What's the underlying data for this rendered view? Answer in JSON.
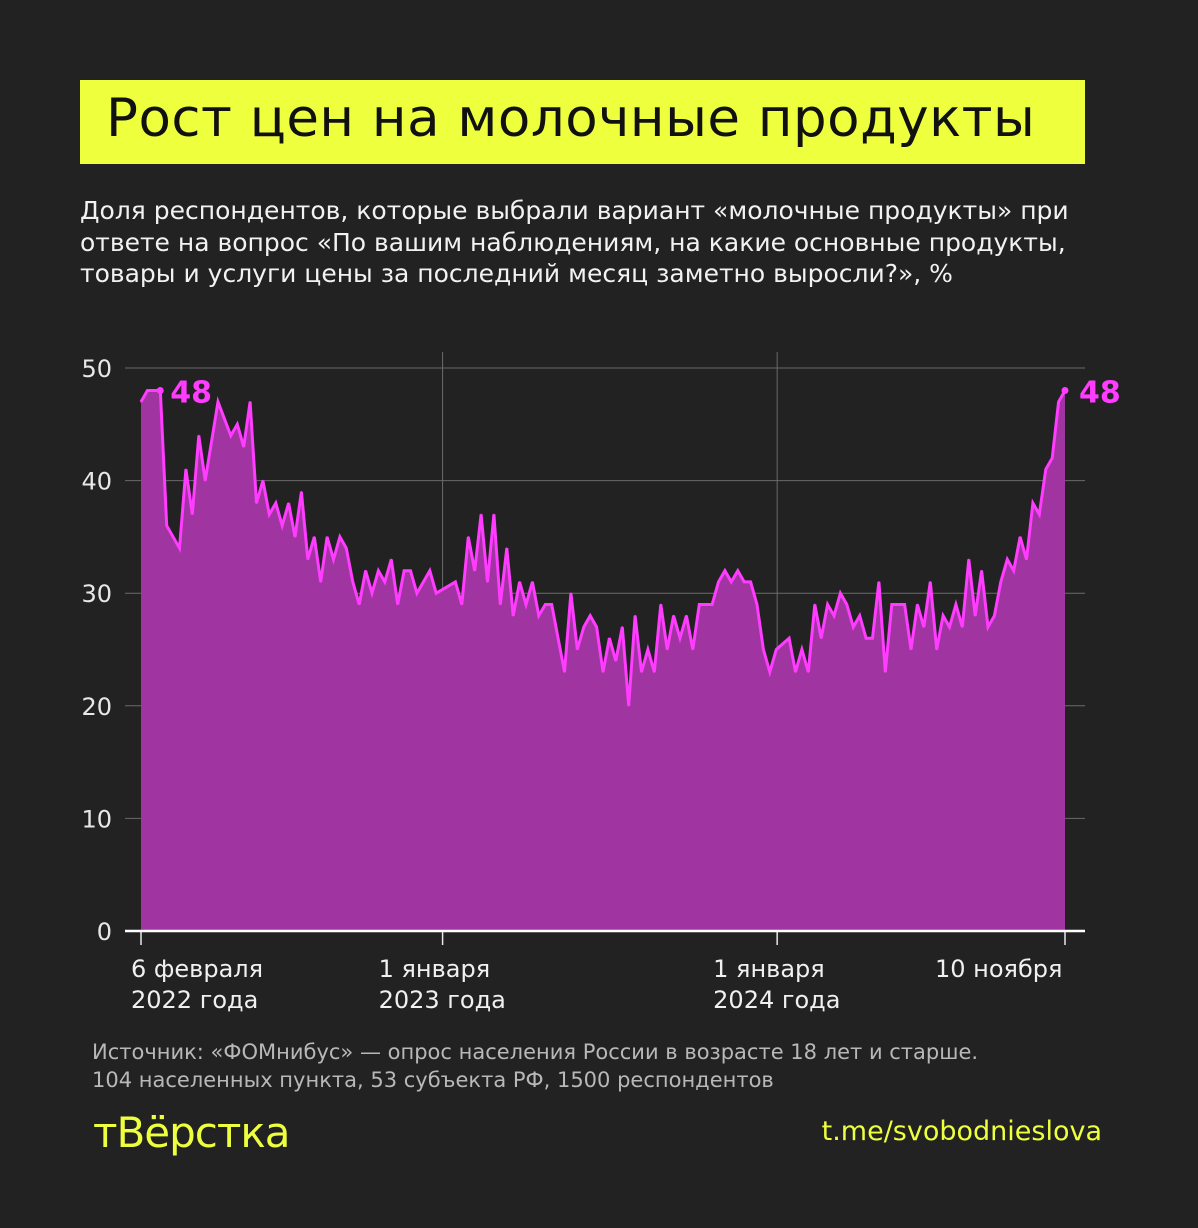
{
  "header": {
    "title": "Рост цен на молочные продукты",
    "subtitle": "Доля респондентов, которые выбрали вариант «молочные продукты» при ответе на вопрос «По вашим наблюдениям, на какие основные продукты, товары и услуги цены за последний месяц заметно выросли?», %"
  },
  "footer": {
    "source": "Источник: «ФОМнибус» — опрос населения России в возрасте 18 лет и старше.",
    "source_detail": "104 населенных пункта, 53 субъекта РФ, 1500 респондентов",
    "logo": "тВёрстка",
    "link": "t.me/svobodnieslova"
  },
  "colors": {
    "background": "#222222",
    "accent": "#eeff3e",
    "line": "#ff3cff",
    "fill": "#a034a0"
  },
  "chart_data": {
    "type": "area",
    "title": "",
    "xlabel": "",
    "ylabel": "",
    "ylim": [
      0,
      50
    ],
    "xlim": [
      "2022-02-06",
      "2024-11-10"
    ],
    "grid": true,
    "yticks": [
      "0",
      "10",
      "20",
      "30",
      "40",
      "50"
    ],
    "xticks": [
      {
        "date": "2022-02-06",
        "line1": "6 февраля",
        "line2": "2022 года"
      },
      {
        "date": "2023-01-01",
        "line1": "1 января",
        "line2": "2023 года"
      },
      {
        "date": "2024-01-01",
        "line1": "1 января",
        "line2": "2024 года"
      },
      {
        "date": "2024-11-10",
        "line1": "10 ноября",
        "line2": ""
      }
    ],
    "annotations": [
      {
        "date": "2022-02-27",
        "value": 48,
        "label": "48"
      },
      {
        "date": "2024-11-10",
        "value": 48,
        "label": "48"
      }
    ],
    "points": [
      [
        "2022-02-06",
        47
      ],
      [
        "2022-02-13",
        48
      ],
      [
        "2022-02-20",
        48
      ],
      [
        "2022-02-27",
        48
      ],
      [
        "2022-03-06",
        36
      ],
      [
        "2022-03-20",
        34
      ],
      [
        "2022-03-27",
        41
      ],
      [
        "2022-04-03",
        37
      ],
      [
        "2022-04-10",
        44
      ],
      [
        "2022-04-17",
        40
      ],
      [
        "2022-05-01",
        47
      ],
      [
        "2022-05-15",
        44
      ],
      [
        "2022-05-22",
        45
      ],
      [
        "2022-05-29",
        43
      ],
      [
        "2022-06-05",
        47
      ],
      [
        "2022-06-12",
        38
      ],
      [
        "2022-06-19",
        40
      ],
      [
        "2022-06-26",
        37
      ],
      [
        "2022-07-03",
        38
      ],
      [
        "2022-07-10",
        36
      ],
      [
        "2022-07-17",
        38
      ],
      [
        "2022-07-24",
        35
      ],
      [
        "2022-07-31",
        39
      ],
      [
        "2022-08-07",
        33
      ],
      [
        "2022-08-14",
        35
      ],
      [
        "2022-08-21",
        31
      ],
      [
        "2022-08-28",
        35
      ],
      [
        "2022-09-04",
        33
      ],
      [
        "2022-09-11",
        35
      ],
      [
        "2022-09-18",
        34
      ],
      [
        "2022-09-25",
        31
      ],
      [
        "2022-10-02",
        29
      ],
      [
        "2022-10-09",
        32
      ],
      [
        "2022-10-16",
        30
      ],
      [
        "2022-10-23",
        32
      ],
      [
        "2022-10-30",
        31
      ],
      [
        "2022-11-06",
        33
      ],
      [
        "2022-11-13",
        29
      ],
      [
        "2022-11-20",
        32
      ],
      [
        "2022-11-27",
        32
      ],
      [
        "2022-12-04",
        30
      ],
      [
        "2022-12-18",
        32
      ],
      [
        "2022-12-25",
        30
      ],
      [
        "2023-01-15",
        31
      ],
      [
        "2023-01-22",
        29
      ],
      [
        "2023-01-29",
        35
      ],
      [
        "2023-02-05",
        32
      ],
      [
        "2023-02-12",
        37
      ],
      [
        "2023-02-19",
        31
      ],
      [
        "2023-02-26",
        37
      ],
      [
        "2023-03-05",
        29
      ],
      [
        "2023-03-12",
        34
      ],
      [
        "2023-03-19",
        28
      ],
      [
        "2023-03-26",
        31
      ],
      [
        "2023-04-02",
        29
      ],
      [
        "2023-04-09",
        31
      ],
      [
        "2023-04-16",
        28
      ],
      [
        "2023-04-23",
        29
      ],
      [
        "2023-04-30",
        29
      ],
      [
        "2023-05-14",
        23
      ],
      [
        "2023-05-21",
        30
      ],
      [
        "2023-05-28",
        25
      ],
      [
        "2023-06-04",
        27
      ],
      [
        "2023-06-11",
        28
      ],
      [
        "2023-06-18",
        27
      ],
      [
        "2023-06-25",
        23
      ],
      [
        "2023-07-02",
        26
      ],
      [
        "2023-07-09",
        24
      ],
      [
        "2023-07-16",
        27
      ],
      [
        "2023-07-23",
        20
      ],
      [
        "2023-07-30",
        28
      ],
      [
        "2023-08-06",
        23
      ],
      [
        "2023-08-13",
        25
      ],
      [
        "2023-08-20",
        23
      ],
      [
        "2023-08-27",
        29
      ],
      [
        "2023-09-03",
        25
      ],
      [
        "2023-09-10",
        28
      ],
      [
        "2023-09-17",
        26
      ],
      [
        "2023-09-24",
        28
      ],
      [
        "2023-10-01",
        25
      ],
      [
        "2023-10-08",
        29
      ],
      [
        "2023-10-22",
        29
      ],
      [
        "2023-10-29",
        31
      ],
      [
        "2023-11-05",
        32
      ],
      [
        "2023-11-12",
        31
      ],
      [
        "2023-11-19",
        32
      ],
      [
        "2023-11-26",
        31
      ],
      [
        "2023-12-03",
        31
      ],
      [
        "2023-12-10",
        29
      ],
      [
        "2023-12-17",
        25
      ],
      [
        "2023-12-24",
        23
      ],
      [
        "2023-12-31",
        25
      ],
      [
        "2024-01-14",
        26
      ],
      [
        "2024-01-21",
        23
      ],
      [
        "2024-01-28",
        25
      ],
      [
        "2024-02-04",
        23
      ],
      [
        "2024-02-11",
        29
      ],
      [
        "2024-02-18",
        26
      ],
      [
        "2024-02-25",
        29
      ],
      [
        "2024-03-03",
        28
      ],
      [
        "2024-03-10",
        30
      ],
      [
        "2024-03-17",
        29
      ],
      [
        "2024-03-24",
        27
      ],
      [
        "2024-03-31",
        28
      ],
      [
        "2024-04-07",
        26
      ],
      [
        "2024-04-14",
        26
      ],
      [
        "2024-04-21",
        31
      ],
      [
        "2024-04-28",
        23
      ],
      [
        "2024-05-05",
        29
      ],
      [
        "2024-05-19",
        29
      ],
      [
        "2024-05-26",
        25
      ],
      [
        "2024-06-02",
        29
      ],
      [
        "2024-06-09",
        27
      ],
      [
        "2024-06-16",
        31
      ],
      [
        "2024-06-23",
        25
      ],
      [
        "2024-06-30",
        28
      ],
      [
        "2024-07-07",
        27
      ],
      [
        "2024-07-14",
        29
      ],
      [
        "2024-07-21",
        27
      ],
      [
        "2024-07-28",
        33
      ],
      [
        "2024-08-04",
        28
      ],
      [
        "2024-08-11",
        32
      ],
      [
        "2024-08-18",
        27
      ],
      [
        "2024-08-25",
        28
      ],
      [
        "2024-09-01",
        31
      ],
      [
        "2024-09-08",
        33
      ],
      [
        "2024-09-15",
        32
      ],
      [
        "2024-09-22",
        35
      ],
      [
        "2024-09-29",
        33
      ],
      [
        "2024-10-06",
        38
      ],
      [
        "2024-10-13",
        37
      ],
      [
        "2024-10-20",
        41
      ],
      [
        "2024-10-27",
        42
      ],
      [
        "2024-11-03",
        47
      ],
      [
        "2024-11-10",
        48
      ]
    ]
  }
}
